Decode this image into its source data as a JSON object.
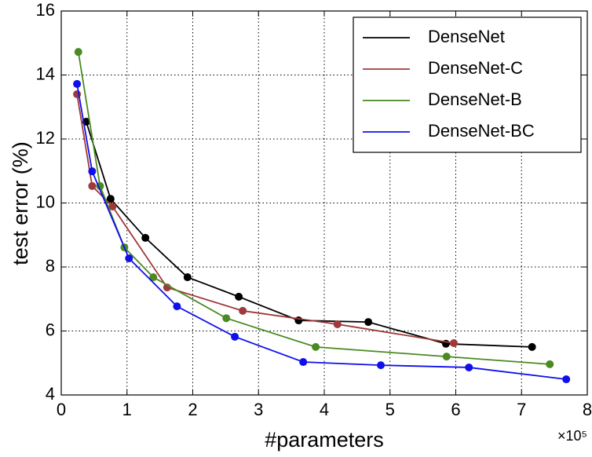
{
  "chart_data": {
    "type": "line",
    "x_label": "#parameters",
    "y_label": "test error (%)",
    "x_multiplier": "×10⁵",
    "xlim": [
      0,
      8
    ],
    "xticks": [
      0,
      1,
      2,
      3,
      4,
      5,
      6,
      7,
      8
    ],
    "ylim": [
      4,
      16
    ],
    "yticks": [
      4,
      6,
      8,
      10,
      12,
      14,
      16
    ],
    "grid": true,
    "legend": "upper right",
    "series": [
      {
        "name": "DenseNet",
        "color": "#000000",
        "x": [
          0.38,
          0.75,
          1.28,
          1.92,
          2.7,
          3.61,
          4.67,
          5.85,
          7.16
        ],
        "values": [
          12.54,
          10.13,
          8.91,
          7.68,
          7.07,
          6.33,
          6.28,
          5.6,
          5.5
        ]
      },
      {
        "name": "DenseNet-C",
        "color": "#a0393a",
        "x": [
          0.24,
          0.47,
          0.78,
          1.61,
          2.76,
          4.2,
          5.97
        ],
        "values": [
          13.4,
          10.53,
          9.89,
          7.36,
          6.63,
          6.21,
          5.62
        ]
      },
      {
        "name": "DenseNet-B",
        "color": "#4a8a22",
        "x": [
          0.26,
          0.59,
          0.96,
          1.4,
          2.51,
          3.87,
          5.86,
          7.43
        ],
        "values": [
          14.72,
          10.53,
          8.61,
          7.68,
          6.4,
          5.5,
          5.2,
          4.96
        ]
      },
      {
        "name": "DenseNet-BC",
        "color": "#0f0fec",
        "x": [
          0.24,
          0.47,
          1.03,
          1.76,
          2.64,
          3.68,
          4.86,
          6.2,
          7.68
        ],
        "values": [
          13.72,
          10.99,
          8.27,
          6.77,
          5.82,
          5.03,
          4.93,
          4.86,
          4.49
        ]
      }
    ]
  }
}
